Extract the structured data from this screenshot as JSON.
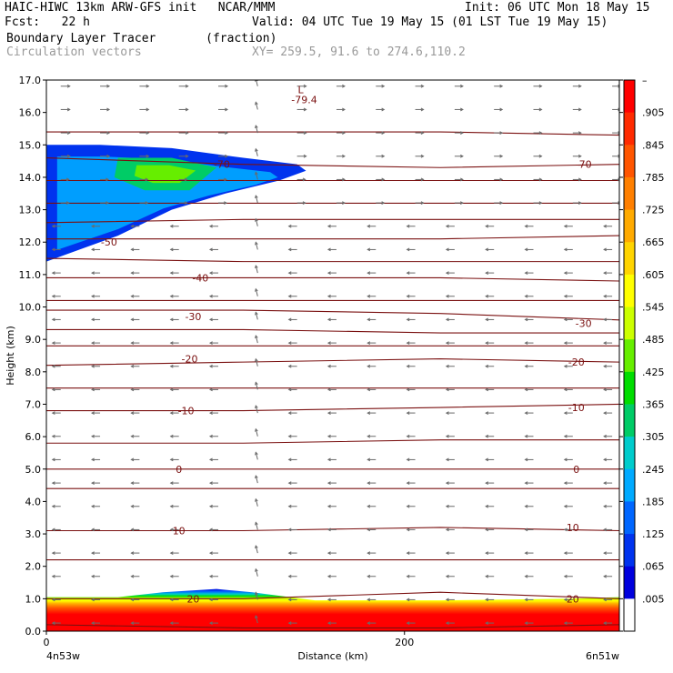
{
  "header": {
    "model_line": "HAIC-HIWC 13km ARW-GFS init   NCAR/MMM",
    "init_line": "Init: 06 UTC Mon 18 May 15",
    "fcst_line": "Fcst:   22 h",
    "valid_line": "Valid: 04 UTC Tue 19 May 15 (01 LST Tue 19 May 15)",
    "field_line": "Boundary Layer Tracer       (fraction)",
    "vector_line": "Circulation vectors",
    "xy_line": "XY= 259.5, 91.6 to 274.6,110.2"
  },
  "chart_data": {
    "type": "heatmap",
    "title": "Boundary Layer Tracer",
    "units": "fraction",
    "ylabel": "Height (km)",
    "xlabel": "Distance (km)",
    "ylim": [
      0,
      17
    ],
    "xlim": [
      0,
      320
    ],
    "y_ticks": [
      "0.0",
      "1.0",
      "2.0",
      "3.0",
      "4.0",
      "5.0",
      "6.0",
      "7.0",
      "8.0",
      "9.0",
      "10.0",
      "11.0",
      "12.0",
      "13.0",
      "14.0",
      "15.0",
      "16.0",
      "17.0"
    ],
    "x_ticks": [
      {
        "value": 0,
        "label": "0"
      },
      {
        "value": 200,
        "label": "200"
      }
    ],
    "x_end_labels": {
      "left": "4n53w",
      "right": "6n51w"
    },
    "colorbar": {
      "labels": [
        "–",
        ".905",
        ".845",
        ".785",
        ".725",
        ".665",
        ".605",
        ".545",
        ".485",
        ".425",
        ".365",
        ".305",
        ".245",
        ".185",
        ".125",
        ".065",
        ".005"
      ],
      "colors": [
        "#ff0000",
        "#ff2a00",
        "#ff5500",
        "#ff7f00",
        "#ffaa00",
        "#ffd400",
        "#ffff00",
        "#ccff00",
        "#66ee00",
        "#00dd00",
        "#00cc66",
        "#00cccc",
        "#00aaff",
        "#0066ff",
        "#0033ee",
        "#0000dd",
        "#ffffff"
      ]
    },
    "isotherms": [
      {
        "label": "-70",
        "heights": [
          14.6,
          14.4,
          14.3,
          14.4
        ]
      },
      {
        "label": "-50",
        "heights": [
          12.1,
          12.1,
          12.1,
          12.2
        ]
      },
      {
        "label": "-40",
        "heights": [
          10.9,
          10.9,
          10.9,
          10.8
        ]
      },
      {
        "label": "-30",
        "heights": [
          9.9,
          9.9,
          9.8,
          9.6
        ]
      },
      {
        "label": "-20",
        "heights": [
          8.2,
          8.3,
          8.4,
          8.3
        ]
      },
      {
        "label": "-10",
        "heights": [
          6.8,
          6.8,
          6.9,
          7.0
        ]
      },
      {
        "label": "0",
        "heights": [
          5.0,
          5.0,
          5.0,
          5.0
        ]
      },
      {
        "label": "10",
        "heights": [
          3.1,
          3.1,
          3.2,
          3.1
        ]
      },
      {
        "label": "20",
        "heights": [
          1.0,
          1.0,
          1.2,
          1.0
        ]
      }
    ],
    "extra_contours": [
      [
        15.4,
        15.4,
        15.4,
        15.3
      ],
      [
        13.9,
        13.9,
        13.9,
        13.9
      ],
      [
        13.2,
        13.2,
        13.2,
        13.2
      ],
      [
        12.6,
        12.7,
        12.7,
        12.7
      ],
      [
        11.5,
        11.4,
        11.4,
        11.4
      ],
      [
        10.2,
        10.2,
        10.2,
        10.2
      ],
      [
        9.3,
        9.3,
        9.2,
        9.2
      ],
      [
        8.8,
        8.8,
        8.8,
        8.8
      ],
      [
        7.5,
        7.5,
        7.5,
        7.5
      ],
      [
        5.8,
        5.8,
        5.9,
        5.9
      ],
      [
        4.4,
        4.4,
        4.4,
        4.4
      ],
      [
        2.2,
        2.2,
        2.2,
        2.2
      ],
      [
        0.2,
        0.1,
        0.1,
        0.2
      ]
    ],
    "annotations": [
      {
        "text": "L",
        "x": 142,
        "y": 16.7
      },
      {
        "text": "-79.4",
        "x": 144,
        "y": 16.4
      },
      {
        "text": "-70",
        "x": 98,
        "y": 14.4
      },
      {
        "text": "-70",
        "x": 300,
        "y": 14.4
      },
      {
        "text": "-50",
        "x": 35,
        "y": 12.0
      },
      {
        "text": "-40",
        "x": 86,
        "y": 10.9
      },
      {
        "text": "-30",
        "x": 82,
        "y": 9.7
      },
      {
        "text": "-30",
        "x": 300,
        "y": 9.5
      },
      {
        "text": "-20",
        "x": 80,
        "y": 8.4
      },
      {
        "text": "-20",
        "x": 296,
        "y": 8.3
      },
      {
        "text": "-10",
        "x": 78,
        "y": 6.8
      },
      {
        "text": "-10",
        "x": 296,
        "y": 6.9
      },
      {
        "text": "0",
        "x": 74,
        "y": 5.0
      },
      {
        "text": "0",
        "x": 296,
        "y": 5.0
      },
      {
        "text": "10",
        "x": 74,
        "y": 3.1
      },
      {
        "text": "10",
        "x": 294,
        "y": 3.2
      },
      {
        "text": "20",
        "x": 82,
        "y": 1.0
      },
      {
        "text": "20",
        "x": 294,
        "y": 1.0
      }
    ],
    "tracer_upper_blob": [
      [
        0,
        15.0
      ],
      [
        30,
        15.0
      ],
      [
        70,
        14.9
      ],
      [
        110,
        14.6
      ],
      [
        140,
        14.4
      ],
      [
        145,
        14.2
      ],
      [
        130,
        13.9
      ],
      [
        100,
        13.5
      ],
      [
        70,
        13.0
      ],
      [
        40,
        12.2
      ],
      [
        20,
        11.8
      ],
      [
        0,
        11.4
      ]
    ],
    "tracer_upper_core": [
      [
        40,
        14.6
      ],
      [
        70,
        14.6
      ],
      [
        95,
        14.3
      ],
      [
        80,
        13.6
      ],
      [
        55,
        13.6
      ],
      [
        38,
        14.0
      ]
    ],
    "tracer_boundary_layer_top": [
      [
        0,
        1.05
      ],
      [
        40,
        1.05
      ],
      [
        65,
        1.2
      ],
      [
        95,
        1.3
      ],
      [
        115,
        1.2
      ],
      [
        150,
        0.95
      ],
      [
        220,
        0.95
      ],
      [
        290,
        1.0
      ],
      [
        320,
        1.05
      ]
    ]
  }
}
